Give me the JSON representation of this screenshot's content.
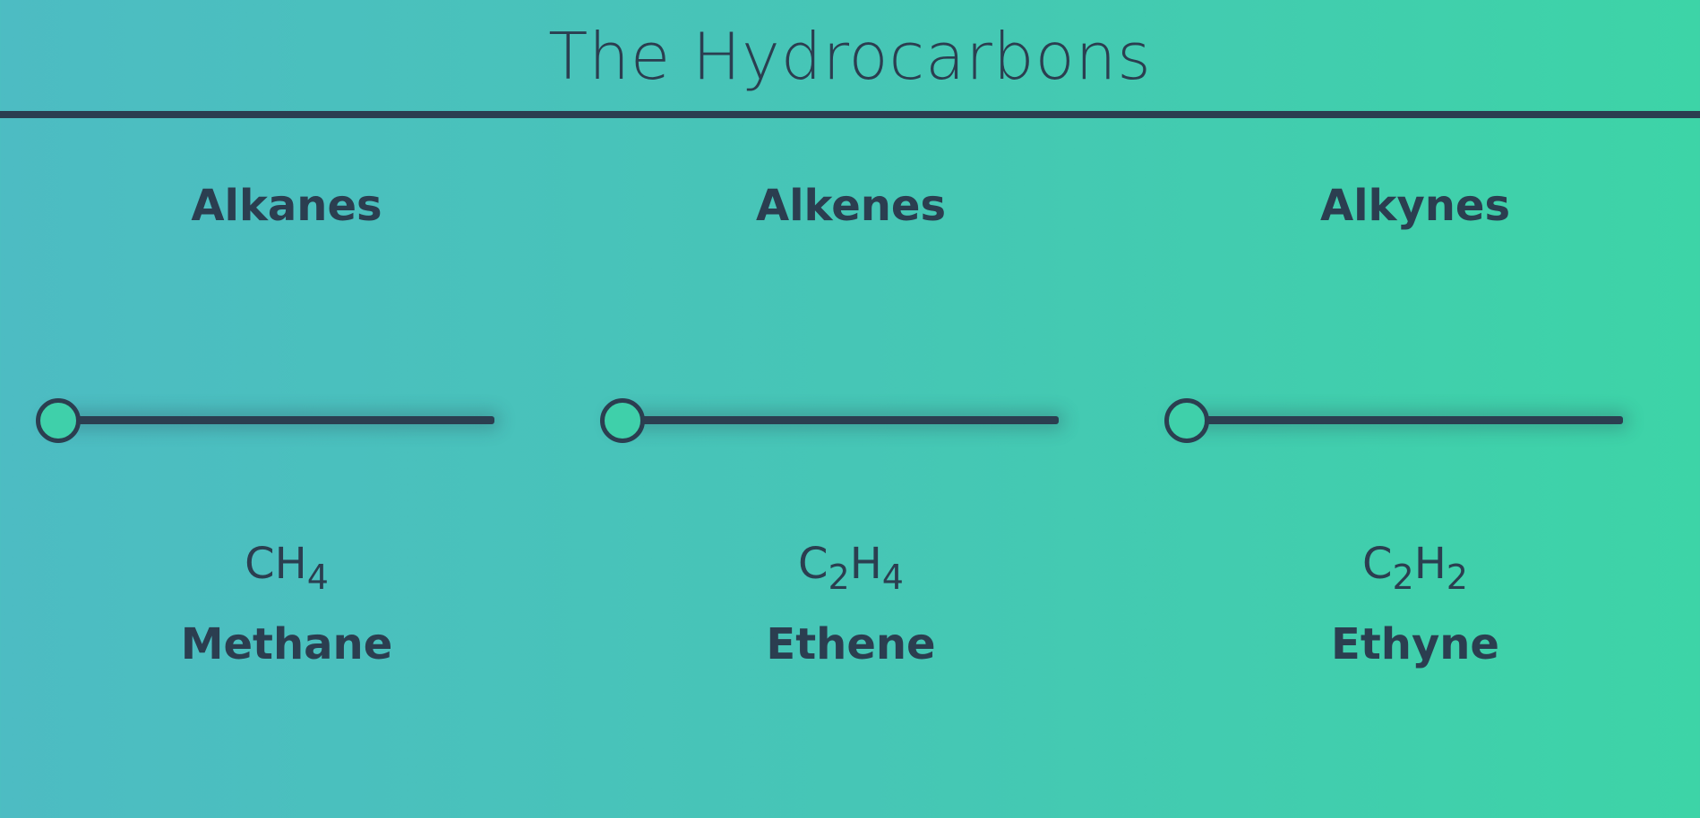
{
  "page": {
    "title": "The Hydrocarbons"
  },
  "colors": {
    "text": "#2b3e50",
    "background_start": "#4dbcc3",
    "background_end": "#3dd4a7",
    "thumb_fill": "#3fd0aa"
  },
  "columns": [
    {
      "group": "Alkanes",
      "slider_value": 0,
      "formula": [
        {
          "el": "C",
          "sub": ""
        },
        {
          "el": "H",
          "sub": "4"
        }
      ],
      "compound": "Methane"
    },
    {
      "group": "Alkenes",
      "slider_value": 0,
      "formula": [
        {
          "el": "C",
          "sub": "2"
        },
        {
          "el": "H",
          "sub": "4"
        }
      ],
      "compound": "Ethene"
    },
    {
      "group": "Alkynes",
      "slider_value": 0,
      "formula": [
        {
          "el": "C",
          "sub": "2"
        },
        {
          "el": "H",
          "sub": "2"
        }
      ],
      "compound": "Ethyne"
    }
  ]
}
